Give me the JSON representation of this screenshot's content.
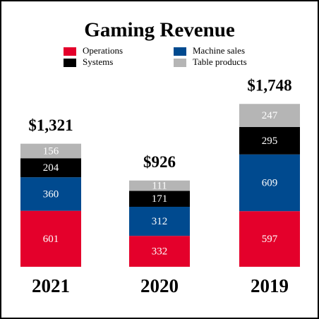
{
  "chart_data": {
    "type": "stacked-bar",
    "title": "Gaming Revenue",
    "categories": [
      "2021",
      "2020",
      "2019"
    ],
    "series": [
      {
        "name": "Operations",
        "color": "#e4002b",
        "values": [
          601,
          332,
          597
        ]
      },
      {
        "name": "Machine sales",
        "color": "#004a8f",
        "values": [
          360,
          312,
          609
        ]
      },
      {
        "name": "Systems",
        "color": "#000000",
        "values": [
          204,
          171,
          295
        ]
      },
      {
        "name": "Table products",
        "color": "#b5b5b5",
        "values": [
          156,
          111,
          247
        ]
      }
    ],
    "totals": [
      1321,
      926,
      1748
    ],
    "total_labels": [
      "$1,321",
      "$926",
      "$1,748"
    ]
  }
}
